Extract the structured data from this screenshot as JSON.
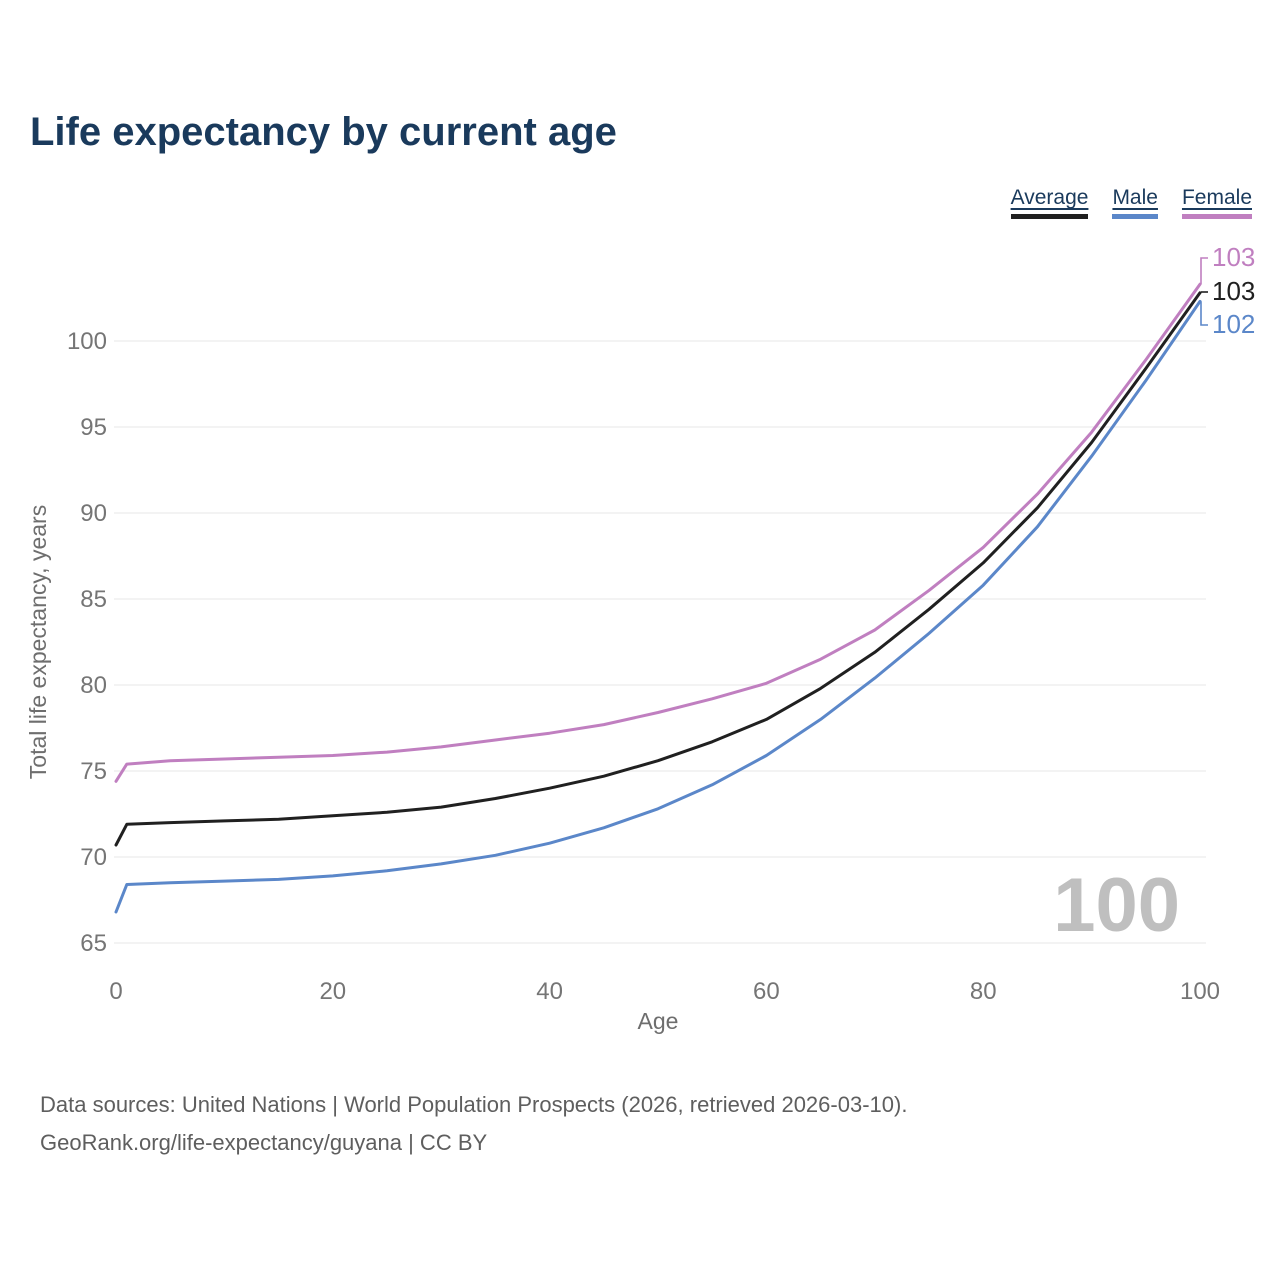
{
  "header": {
    "title": "Life expectancy by current age"
  },
  "legend": {
    "items": [
      {
        "name": "average",
        "label": "Average",
        "color": "#202020"
      },
      {
        "name": "male",
        "label": "Male",
        "color": "#5b87c9"
      },
      {
        "name": "female",
        "label": "Female",
        "color": "#c07fc0"
      }
    ]
  },
  "chart_data": {
    "type": "line",
    "title": "Life expectancy by current age",
    "xlabel": "Age",
    "ylabel": "Total life expectancy, years",
    "xlim": [
      0,
      100
    ],
    "ylim": [
      65,
      104
    ],
    "x_ticks": [
      0,
      20,
      40,
      60,
      80,
      100
    ],
    "y_ticks": [
      65,
      70,
      75,
      80,
      85,
      90,
      95,
      100
    ],
    "grid": "horizontal-only",
    "grid_color": "#ececec",
    "tick_label_color": "#757575",
    "axis_title_color": "#6e6e6e",
    "legend_position": "top-right",
    "x": [
      0,
      1,
      5,
      10,
      15,
      20,
      25,
      30,
      35,
      40,
      45,
      50,
      55,
      60,
      65,
      70,
      75,
      80,
      85,
      90,
      95,
      100
    ],
    "series": [
      {
        "name": "Female",
        "color": "#c07fc0",
        "end_label": "103",
        "values": [
          74.4,
          75.4,
          75.6,
          75.7,
          75.8,
          75.9,
          76.1,
          76.4,
          76.8,
          77.2,
          77.7,
          78.4,
          79.2,
          80.1,
          81.5,
          83.2,
          85.5,
          88.0,
          91.1,
          94.7,
          98.9,
          103.3
        ]
      },
      {
        "name": "Average",
        "color": "#202020",
        "end_label": "103",
        "values": [
          70.7,
          71.9,
          72.0,
          72.1,
          72.2,
          72.4,
          72.6,
          72.9,
          73.4,
          74.0,
          74.7,
          75.6,
          76.7,
          78.0,
          79.8,
          81.9,
          84.4,
          87.1,
          90.3,
          94.1,
          98.4,
          102.8
        ]
      },
      {
        "name": "Male",
        "color": "#5b87c9",
        "end_label": "102",
        "values": [
          66.8,
          68.4,
          68.5,
          68.6,
          68.7,
          68.9,
          69.2,
          69.6,
          70.1,
          70.8,
          71.7,
          72.8,
          74.2,
          75.9,
          78.0,
          80.4,
          83.0,
          85.8,
          89.2,
          93.3,
          97.7,
          102.3
        ]
      }
    ],
    "annotations": {
      "hover_age_watermark": "100",
      "watermark_color": "#bfbfbf"
    }
  },
  "footer": {
    "line1": "Data sources: United Nations | World Population Prospects (2026, retrieved 2026-03-10).",
    "line2": "GeoRank.org/life-expectancy/guyana | CC BY"
  }
}
